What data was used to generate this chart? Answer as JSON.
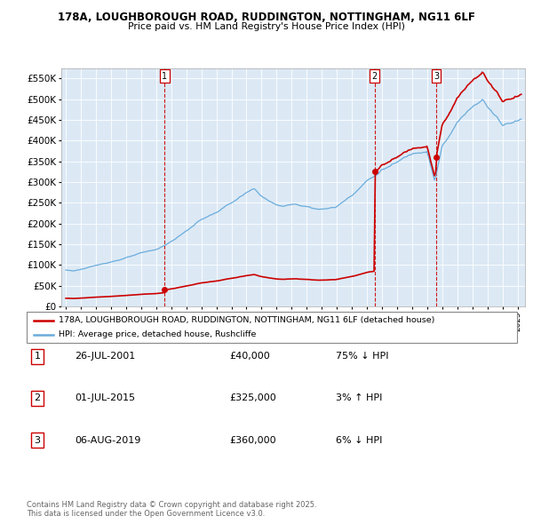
{
  "title_line1": "178A, LOUGHBOROUGH ROAD, RUDDINGTON, NOTTINGHAM, NG11 6LF",
  "title_line2": "Price paid vs. HM Land Registry's House Price Index (HPI)",
  "background_color": "#ffffff",
  "plot_bg_color": "#dce9f5",
  "grid_color": "#ffffff",
  "hpi_color": "#6aacdc",
  "price_color": "#cc0000",
  "vline_color": "#cc0000",
  "ylim": [
    0,
    575000
  ],
  "yticks": [
    0,
    50000,
    100000,
    150000,
    200000,
    250000,
    300000,
    350000,
    400000,
    450000,
    500000,
    550000
  ],
  "ytick_labels": [
    "£0",
    "£50K",
    "£100K",
    "£150K",
    "£200K",
    "£250K",
    "£300K",
    "£350K",
    "£400K",
    "£450K",
    "£500K",
    "£550K"
  ],
  "xmin_year": 1994.7,
  "xmax_year": 2025.5,
  "xtick_years": [
    1995,
    1996,
    1997,
    1998,
    1999,
    2000,
    2001,
    2002,
    2003,
    2004,
    2005,
    2006,
    2007,
    2008,
    2009,
    2010,
    2011,
    2012,
    2013,
    2014,
    2015,
    2016,
    2017,
    2018,
    2019,
    2020,
    2021,
    2022,
    2023,
    2024,
    2025
  ],
  "sale_dates": [
    2001.57,
    2015.5,
    2019.6
  ],
  "sale_prices": [
    40000,
    325000,
    360000
  ],
  "sale_labels": [
    "1",
    "2",
    "3"
  ],
  "legend_line1": "178A, LOUGHBOROUGH ROAD, RUDDINGTON, NOTTINGHAM, NG11 6LF (detached house)",
  "legend_line2": "HPI: Average price, detached house, Rushcliffe",
  "table_rows": [
    {
      "num": "1",
      "date": "26-JUL-2001",
      "price": "£40,000",
      "pct": "75% ↓ HPI"
    },
    {
      "num": "2",
      "date": "01-JUL-2015",
      "price": "£325,000",
      "pct": "3% ↑ HPI"
    },
    {
      "num": "3",
      "date": "06-AUG-2019",
      "price": "£360,000",
      "pct": "6% ↓ HPI"
    }
  ],
  "footnote": "Contains HM Land Registry data © Crown copyright and database right 2025.\nThis data is licensed under the Open Government Licence v3.0."
}
